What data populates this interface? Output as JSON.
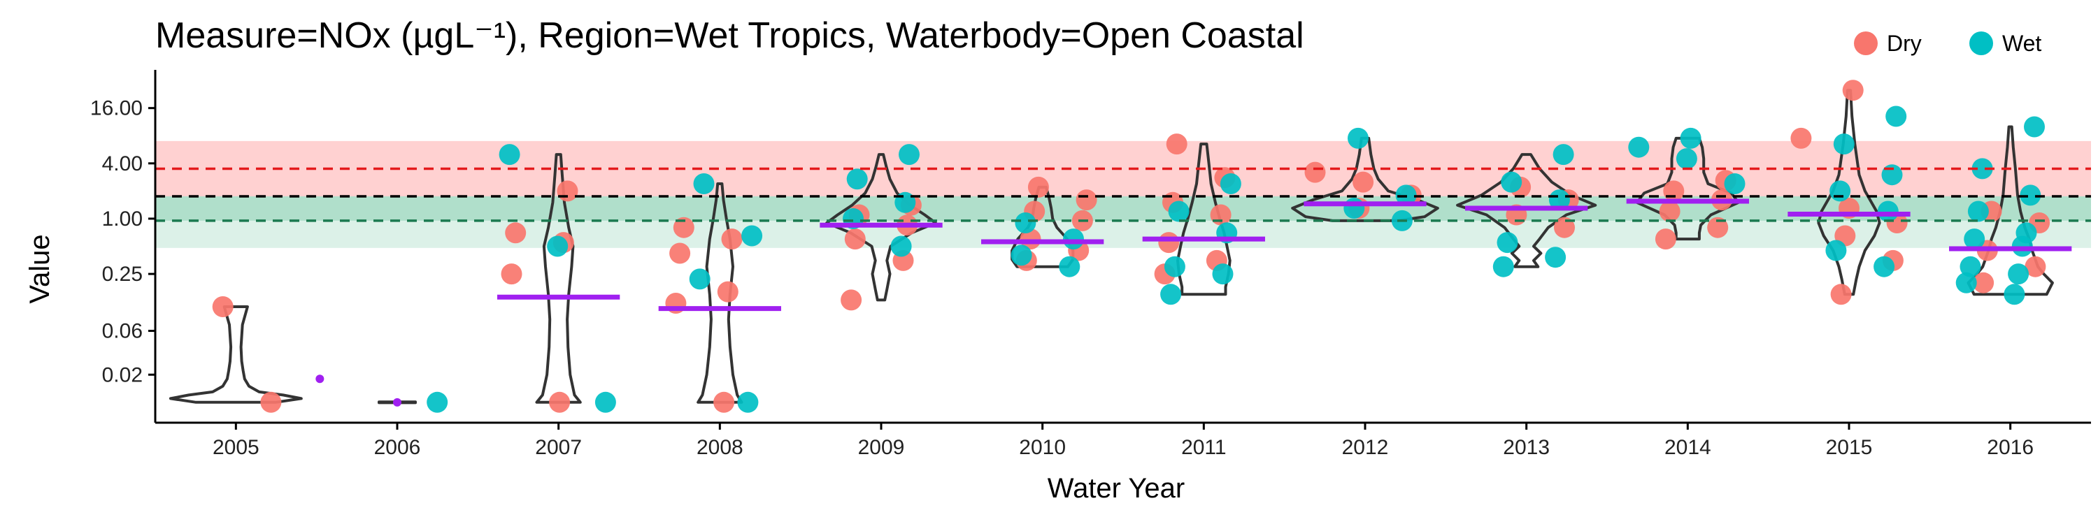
{
  "chart_data": {
    "type": "violin",
    "title": "Measure=NOx (µgL⁻¹), Region=Wet Tropics, Waterbody=Open Coastal",
    "xlabel": "Water Year",
    "ylabel": "Value",
    "y_scale": "log2",
    "ylim": [
      0.006,
      35
    ],
    "y_ticks": [
      0.02,
      0.06,
      0.25,
      1.0,
      4.0,
      16.0
    ],
    "y_tick_labels": [
      "0.02",
      "0.06",
      "0.25",
      "1.00",
      "4.00",
      "16.00"
    ],
    "categories": [
      "2005",
      "2006",
      "2007",
      "2008",
      "2009",
      "2010",
      "2011",
      "2012",
      "2013",
      "2014",
      "2015",
      "2016"
    ],
    "reference_lines": [
      {
        "value": 3.5,
        "color": "#e41a1c",
        "style": "dashed"
      },
      {
        "value": 1.75,
        "color": "#000000",
        "style": "dashed"
      },
      {
        "value": 0.95,
        "color": "#1b7a50",
        "style": "dashed"
      }
    ],
    "bands": [
      {
        "from": 1.75,
        "to": 7.0,
        "color": "#ff9999",
        "opacity": 0.45
      },
      {
        "from": 0.95,
        "to": 1.75,
        "color": "#6fc5a0",
        "opacity": 0.55
      },
      {
        "from": 0.48,
        "to": 0.95,
        "color": "#a8dcc6",
        "opacity": 0.4
      }
    ],
    "medians": [
      0.018,
      0.01,
      0.14,
      0.105,
      0.85,
      0.56,
      0.6,
      1.45,
      1.3,
      1.55,
      1.12,
      0.47
    ],
    "median_color": "#a020f0",
    "legend": {
      "position": "top-right",
      "entries": [
        {
          "name": "Dry",
          "color": "#f8766d"
        },
        {
          "name": "Wet",
          "color": "#00bfc4"
        }
      ]
    },
    "series": [
      {
        "name": "Dry",
        "color": "#f8766d",
        "points": [
          [
            "2005",
            0.11
          ],
          [
            "2005",
            0.01
          ],
          [
            "2007",
            2.0
          ],
          [
            "2007",
            0.7
          ],
          [
            "2007",
            0.55
          ],
          [
            "2007",
            0.25
          ],
          [
            "2007",
            0.01
          ],
          [
            "2008",
            0.8
          ],
          [
            "2008",
            0.6
          ],
          [
            "2008",
            0.42
          ],
          [
            "2008",
            0.16
          ],
          [
            "2008",
            0.12
          ],
          [
            "2008",
            0.01
          ],
          [
            "2009",
            1.4
          ],
          [
            "2009",
            1.1
          ],
          [
            "2009",
            0.85
          ],
          [
            "2009",
            0.6
          ],
          [
            "2009",
            0.35
          ],
          [
            "2009",
            0.13
          ],
          [
            "2010",
            2.2
          ],
          [
            "2010",
            1.6
          ],
          [
            "2010",
            1.2
          ],
          [
            "2010",
            0.95
          ],
          [
            "2010",
            0.6
          ],
          [
            "2010",
            0.45
          ],
          [
            "2010",
            0.35
          ],
          [
            "2011",
            6.5
          ],
          [
            "2011",
            2.8
          ],
          [
            "2011",
            1.5
          ],
          [
            "2011",
            1.1
          ],
          [
            "2011",
            0.55
          ],
          [
            "2011",
            0.35
          ],
          [
            "2011",
            0.25
          ],
          [
            "2012",
            3.2
          ],
          [
            "2012",
            2.5
          ],
          [
            "2012",
            1.8
          ],
          [
            "2012",
            1.3
          ],
          [
            "2013",
            2.2
          ],
          [
            "2013",
            1.6
          ],
          [
            "2013",
            1.1
          ],
          [
            "2013",
            0.8
          ],
          [
            "2014",
            2.6
          ],
          [
            "2014",
            2.0
          ],
          [
            "2014",
            1.6
          ],
          [
            "2014",
            1.2
          ],
          [
            "2014",
            0.8
          ],
          [
            "2014",
            0.6
          ],
          [
            "2015",
            25
          ],
          [
            "2015",
            7.5
          ],
          [
            "2015",
            1.3
          ],
          [
            "2015",
            0.9
          ],
          [
            "2015",
            0.65
          ],
          [
            "2015",
            0.35
          ],
          [
            "2015",
            0.15
          ],
          [
            "2016",
            1.2
          ],
          [
            "2016",
            0.9
          ],
          [
            "2016",
            0.45
          ],
          [
            "2016",
            0.3
          ],
          [
            "2016",
            0.2
          ]
        ]
      },
      {
        "name": "Wet",
        "color": "#00bfc4",
        "points": [
          [
            "2006",
            0.01
          ],
          [
            "2007",
            5.0
          ],
          [
            "2007",
            0.5
          ],
          [
            "2007",
            0.01
          ],
          [
            "2008",
            2.4
          ],
          [
            "2008",
            0.65
          ],
          [
            "2008",
            0.22
          ],
          [
            "2008",
            0.01
          ],
          [
            "2009",
            5.0
          ],
          [
            "2009",
            2.7
          ],
          [
            "2009",
            1.5
          ],
          [
            "2009",
            1.0
          ],
          [
            "2009",
            0.5
          ],
          [
            "2010",
            0.9
          ],
          [
            "2010",
            0.6
          ],
          [
            "2010",
            0.4
          ],
          [
            "2010",
            0.3
          ],
          [
            "2011",
            2.4
          ],
          [
            "2011",
            1.2
          ],
          [
            "2011",
            0.7
          ],
          [
            "2011",
            0.3
          ],
          [
            "2011",
            0.25
          ],
          [
            "2011",
            0.15
          ],
          [
            "2012",
            7.5
          ],
          [
            "2012",
            1.8
          ],
          [
            "2012",
            1.3
          ],
          [
            "2012",
            0.95
          ],
          [
            "2013",
            5.0
          ],
          [
            "2013",
            2.5
          ],
          [
            "2013",
            1.6
          ],
          [
            "2013",
            0.55
          ],
          [
            "2013",
            0.38
          ],
          [
            "2013",
            0.3
          ],
          [
            "2014",
            7.5
          ],
          [
            "2014",
            6.0
          ],
          [
            "2014",
            4.5
          ],
          [
            "2014",
            2.4
          ],
          [
            "2015",
            13.0
          ],
          [
            "2015",
            6.5
          ],
          [
            "2015",
            3.0
          ],
          [
            "2015",
            2.0
          ],
          [
            "2015",
            1.2
          ],
          [
            "2015",
            0.45
          ],
          [
            "2015",
            0.3
          ],
          [
            "2016",
            10.0
          ],
          [
            "2016",
            3.5
          ],
          [
            "2016",
            1.8
          ],
          [
            "2016",
            1.2
          ],
          [
            "2016",
            0.7
          ],
          [
            "2016",
            0.6
          ],
          [
            "2016",
            0.5
          ],
          [
            "2016",
            0.3
          ],
          [
            "2016",
            0.25
          ],
          [
            "2016",
            0.2
          ],
          [
            "2016",
            0.15
          ]
        ]
      }
    ],
    "violins": [
      {
        "category": "2005",
        "y": [
          0.01,
          0.011,
          0.012,
          0.013,
          0.015,
          0.018,
          0.022,
          0.028,
          0.04,
          0.07,
          0.11
        ],
        "w": [
          0.55,
          0.9,
          0.65,
          0.32,
          0.18,
          0.12,
          0.1,
          0.08,
          0.07,
          0.09,
          0.16
        ]
      },
      {
        "category": "2006",
        "y": [
          0.0099,
          0.0101
        ],
        "w": [
          0.25,
          0.25
        ]
      },
      {
        "category": "2007",
        "y": [
          0.01,
          0.012,
          0.02,
          0.04,
          0.08,
          0.15,
          0.3,
          0.5,
          0.8,
          1.5,
          3.0,
          5.0
        ],
        "w": [
          0.3,
          0.22,
          0.16,
          0.13,
          0.12,
          0.14,
          0.18,
          0.2,
          0.14,
          0.08,
          0.05,
          0.03
        ]
      },
      {
        "category": "2008",
        "y": [
          0.01,
          0.012,
          0.02,
          0.04,
          0.08,
          0.15,
          0.3,
          0.6,
          1.0,
          1.6,
          2.4
        ],
        "w": [
          0.3,
          0.24,
          0.18,
          0.14,
          0.12,
          0.14,
          0.18,
          0.14,
          0.09,
          0.05,
          0.03
        ]
      },
      {
        "category": "2009",
        "y": [
          0.13,
          0.17,
          0.25,
          0.35,
          0.5,
          0.7,
          0.9,
          1.1,
          1.4,
          1.9,
          2.7,
          3.7,
          5.0
        ],
        "w": [
          0.05,
          0.08,
          0.12,
          0.08,
          0.13,
          0.42,
          0.75,
          0.6,
          0.4,
          0.22,
          0.12,
          0.07,
          0.03
        ]
      },
      {
        "category": "2010",
        "y": [
          0.3,
          0.36,
          0.45,
          0.6,
          0.8,
          1.0,
          1.3,
          1.7,
          2.2
        ],
        "w": [
          0.35,
          0.42,
          0.42,
          0.34,
          0.2,
          0.14,
          0.12,
          0.09,
          0.05
        ]
      },
      {
        "category": "2011",
        "y": [
          0.15,
          0.18,
          0.25,
          0.35,
          0.5,
          0.7,
          1.0,
          1.5,
          2.4,
          4.0,
          6.5
        ],
        "w": [
          0.3,
          0.3,
          0.34,
          0.36,
          0.32,
          0.28,
          0.22,
          0.16,
          0.1,
          0.07,
          0.04
        ]
      },
      {
        "category": "2012",
        "y": [
          0.95,
          1.05,
          1.3,
          1.6,
          2.0,
          2.7,
          3.5,
          5.0,
          7.5
        ],
        "w": [
          0.45,
          0.82,
          1.0,
          0.72,
          0.32,
          0.18,
          0.12,
          0.08,
          0.05
        ]
      },
      {
        "category": "2013",
        "y": [
          0.3,
          0.35,
          0.42,
          0.5,
          0.6,
          0.8,
          1.1,
          1.4,
          1.8,
          2.5,
          3.5,
          5.0
        ],
        "w": [
          0.16,
          0.1,
          0.2,
          0.1,
          0.18,
          0.3,
          0.55,
          0.95,
          0.62,
          0.35,
          0.18,
          0.06
        ]
      },
      {
        "category": "2014",
        "y": [
          0.6,
          0.7,
          0.85,
          1.1,
          1.5,
          1.9,
          2.4,
          3.2,
          4.5,
          6.0,
          7.5
        ],
        "w": [
          0.16,
          0.16,
          0.18,
          0.32,
          0.7,
          0.6,
          0.28,
          0.22,
          0.22,
          0.2,
          0.16
        ]
      },
      {
        "category": "2015",
        "y": [
          0.15,
          0.22,
          0.3,
          0.45,
          0.65,
          0.9,
          1.2,
          2.0,
          3.0,
          6.5,
          13.0,
          25.0
        ],
        "w": [
          0.06,
          0.1,
          0.14,
          0.22,
          0.35,
          0.42,
          0.38,
          0.22,
          0.14,
          0.08,
          0.04,
          0.02
        ]
      },
      {
        "category": "2016",
        "y": [
          0.15,
          0.2,
          0.25,
          0.3,
          0.45,
          0.6,
          0.8,
          1.2,
          1.8,
          3.5,
          6.0,
          10.0
        ],
        "w": [
          0.5,
          0.58,
          0.46,
          0.38,
          0.3,
          0.26,
          0.2,
          0.14,
          0.1,
          0.07,
          0.04,
          0.02
        ]
      }
    ]
  }
}
